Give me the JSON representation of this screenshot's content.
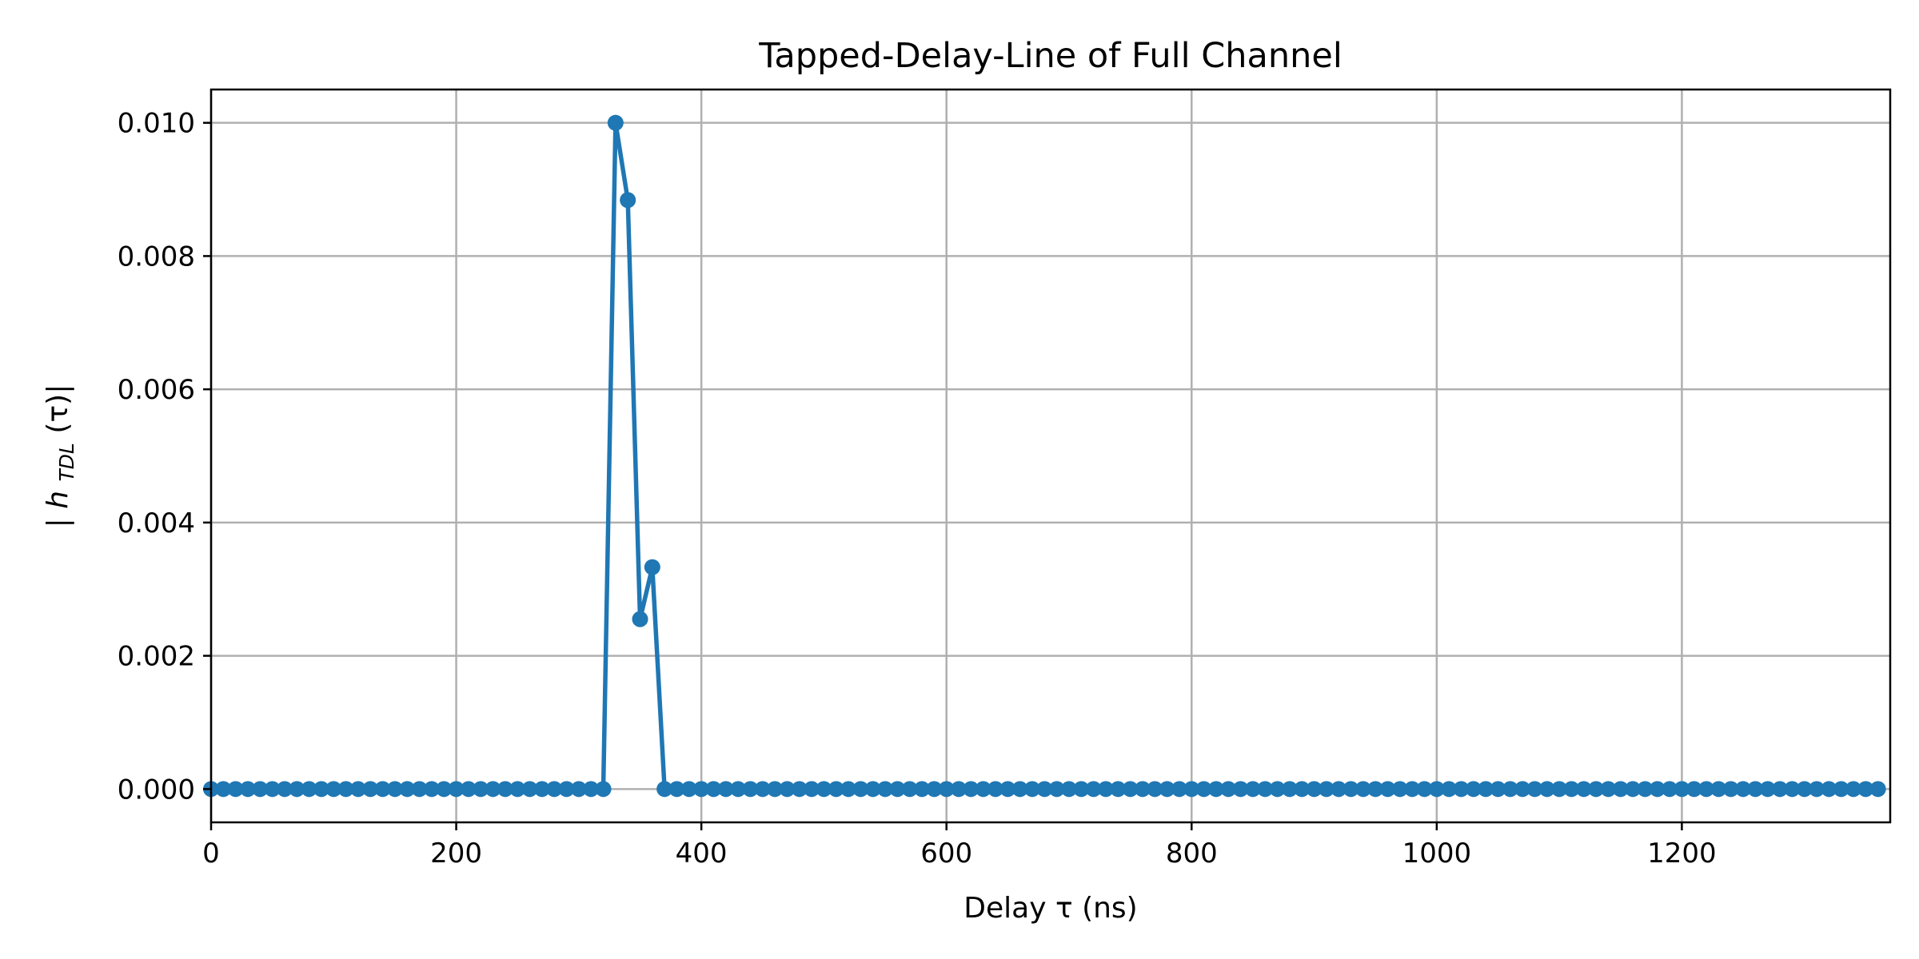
{
  "chart_data": {
    "type": "line",
    "title": "Tapped-Delay-Line of Full Channel",
    "xlabel": "Delay τ (ns)",
    "ylabel": {
      "prefix": "|",
      "main": "h",
      "subscript": "TDL",
      "arg": "(τ)|"
    },
    "xlim": [
      0,
      1370
    ],
    "ylim": [
      -0.0005,
      0.0105
    ],
    "x_ticks": [
      0,
      200,
      400,
      600,
      800,
      1000,
      1200
    ],
    "x_tick_labels": [
      "0",
      "200",
      "400",
      "600",
      "800",
      "1000",
      "1200"
    ],
    "y_ticks": [
      0,
      0.002,
      0.004,
      0.006,
      0.008,
      0.01
    ],
    "y_tick_labels": [
      "0.000",
      "0.002",
      "0.004",
      "0.006",
      "0.008",
      "0.010"
    ],
    "grid": true,
    "marker": "circle",
    "series": [
      {
        "color": "#1f77b4",
        "x_start": 0,
        "x_step": 10,
        "x_end": 1360,
        "values_default": 0,
        "nonzero": [
          {
            "x": 330,
            "y": 0.01
          },
          {
            "x": 340,
            "y": 0.00884
          },
          {
            "x": 350,
            "y": 0.00255
          },
          {
            "x": 360,
            "y": 0.00333
          }
        ]
      }
    ]
  }
}
